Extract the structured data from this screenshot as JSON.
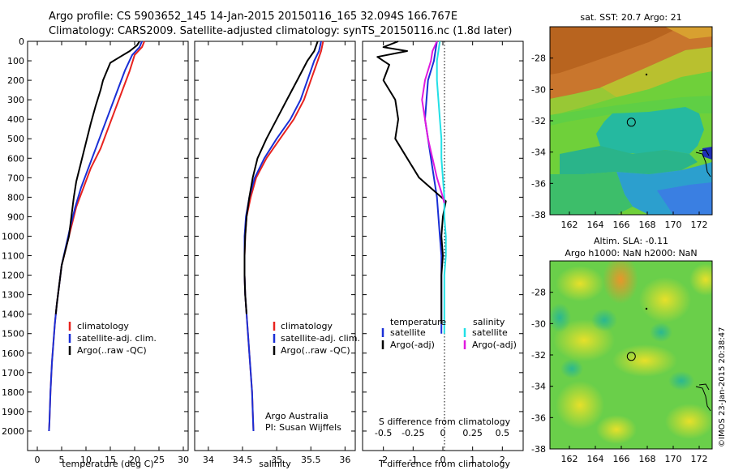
{
  "header": {
    "line1": "Argo profile: CS 5903652_145 14-Jan-2015 20150116_165 32.094S 166.767E",
    "line2": "Climatology: CARS2009. Satellite-adjusted climatology: synTS_20150116.nc (1.8d later)"
  },
  "credits": {
    "institution": "Argo Australia",
    "pi": "PI: Susan Wijffels",
    "imos": "©IMOS 23-Jan-2015 20:38:47"
  },
  "colors": {
    "climatology": "#e8231f",
    "satellite": "#1a2fd6",
    "argo": "#000000",
    "sal_satellite": "#22e0e6",
    "sal_argo": "#e01adf"
  },
  "legend_profiles": [
    "climatology",
    "satellite-adj. clim.",
    "Argo(..raw -QC)"
  ],
  "legend_diff": {
    "temp_head": "temperature",
    "sal_head": "salinity",
    "temp_items": [
      "satellite",
      "Argo(-adj)"
    ],
    "sal_items": [
      "satellite",
      "Argo(-adj)"
    ]
  },
  "chart_data": [
    {
      "type": "line",
      "name": "temperature-profile",
      "xlabel": "temperature (deg C)",
      "xlim": [
        -2,
        31
      ],
      "ylim": [
        2100,
        0
      ],
      "xticks": [
        0,
        5,
        10,
        15,
        20,
        25,
        30
      ],
      "yticks": [
        0,
        100,
        200,
        300,
        400,
        500,
        600,
        700,
        800,
        900,
        1000,
        1100,
        1200,
        1300,
        1400,
        1500,
        1600,
        1700,
        1800,
        1900,
        2000
      ],
      "series": [
        {
          "name": "climatology",
          "color": "#e8231f",
          "points": [
            [
              22.0,
              0
            ],
            [
              21.5,
              30
            ],
            [
              20.0,
              70
            ],
            [
              19.0,
              150
            ],
            [
              17.5,
              250
            ],
            [
              16.0,
              350
            ],
            [
              14.5,
              450
            ],
            [
              13.0,
              550
            ],
            [
              11.0,
              650
            ],
            [
              9.5,
              750
            ],
            [
              8.0,
              850
            ],
            [
              7.0,
              950
            ],
            [
              6.0,
              1050
            ],
            [
              5.0,
              1150
            ],
            [
              4.5,
              1250
            ],
            [
              4.0,
              1350
            ],
            [
              3.6,
              1450
            ],
            [
              3.3,
              1550
            ],
            [
              3.0,
              1650
            ],
            [
              2.7,
              1800
            ],
            [
              2.5,
              1950
            ],
            [
              2.4,
              2000
            ]
          ]
        },
        {
          "name": "satellite-adj. clim.",
          "color": "#1a2fd6",
          "points": [
            [
              21.5,
              0
            ],
            [
              21.0,
              30
            ],
            [
              19.5,
              70
            ],
            [
              18.0,
              150
            ],
            [
              16.5,
              250
            ],
            [
              15.0,
              350
            ],
            [
              13.5,
              450
            ],
            [
              12.0,
              550
            ],
            [
              10.5,
              650
            ],
            [
              9.0,
              750
            ],
            [
              7.8,
              850
            ],
            [
              6.8,
              950
            ],
            [
              5.9,
              1050
            ],
            [
              5.0,
              1150
            ],
            [
              4.5,
              1250
            ],
            [
              4.0,
              1350
            ],
            [
              3.6,
              1450
            ],
            [
              3.3,
              1550
            ],
            [
              3.0,
              1650
            ],
            [
              2.7,
              1800
            ],
            [
              2.5,
              1950
            ],
            [
              2.4,
              2000
            ]
          ]
        },
        {
          "name": "Argo(..raw -QC)",
          "color": "#000000",
          "points": [
            [
              21.0,
              0
            ],
            [
              20.5,
              20
            ],
            [
              19.0,
              50
            ],
            [
              17.0,
              80
            ],
            [
              15.0,
              110
            ],
            [
              13.5,
              200
            ],
            [
              13.0,
              250
            ],
            [
              12.0,
              330
            ],
            [
              11.0,
              420
            ],
            [
              10.0,
              520
            ],
            [
              9.0,
              620
            ],
            [
              8.0,
              720
            ],
            [
              7.5,
              800
            ],
            [
              7.0,
              900
            ],
            [
              6.5,
              1000
            ],
            [
              6.0,
              1050
            ],
            [
              5.0,
              1150
            ],
            [
              4.5,
              1250
            ],
            [
              4.0,
              1350
            ],
            [
              3.8,
              1400
            ]
          ]
        }
      ]
    },
    {
      "type": "line",
      "name": "salinity-profile",
      "xlabel": "salinity",
      "xlim": [
        33.8,
        36.15
      ],
      "ylim": [
        2100,
        0
      ],
      "xticks": [
        34,
        34.5,
        35,
        35.5,
        36
      ],
      "series": [
        {
          "name": "climatology",
          "color": "#e8231f",
          "points": [
            [
              35.68,
              0
            ],
            [
              35.65,
              50
            ],
            [
              35.6,
              100
            ],
            [
              35.5,
              200
            ],
            [
              35.4,
              300
            ],
            [
              35.25,
              400
            ],
            [
              35.05,
              500
            ],
            [
              34.85,
              600
            ],
            [
              34.7,
              700
            ],
            [
              34.62,
              800
            ],
            [
              34.56,
              900
            ],
            [
              34.54,
              1000
            ],
            [
              34.53,
              1100
            ],
            [
              34.53,
              1200
            ],
            [
              34.54,
              1300
            ],
            [
              34.56,
              1400
            ],
            [
              34.58,
              1500
            ],
            [
              34.6,
              1600
            ],
            [
              34.62,
              1700
            ],
            [
              34.64,
              1800
            ],
            [
              34.65,
              1900
            ],
            [
              34.66,
              2000
            ]
          ]
        },
        {
          "name": "satellite-adj. clim.",
          "color": "#1a2fd6",
          "points": [
            [
              35.65,
              0
            ],
            [
              35.62,
              50
            ],
            [
              35.55,
              100
            ],
            [
              35.45,
              200
            ],
            [
              35.35,
              300
            ],
            [
              35.2,
              400
            ],
            [
              35.0,
              500
            ],
            [
              34.82,
              600
            ],
            [
              34.68,
              700
            ],
            [
              34.6,
              800
            ],
            [
              34.55,
              900
            ],
            [
              34.53,
              1000
            ],
            [
              34.53,
              1100
            ],
            [
              34.53,
              1200
            ],
            [
              34.54,
              1300
            ],
            [
              34.56,
              1400
            ],
            [
              34.58,
              1500
            ],
            [
              34.6,
              1600
            ],
            [
              34.62,
              1700
            ],
            [
              34.64,
              1800
            ],
            [
              34.65,
              1900
            ],
            [
              34.66,
              2000
            ]
          ]
        },
        {
          "name": "Argo(..raw -QC)",
          "color": "#000000",
          "points": [
            [
              35.6,
              0
            ],
            [
              35.55,
              50
            ],
            [
              35.45,
              100
            ],
            [
              35.3,
              200
            ],
            [
              35.15,
              300
            ],
            [
              35.0,
              400
            ],
            [
              34.85,
              500
            ],
            [
              34.72,
              600
            ],
            [
              34.65,
              700
            ],
            [
              34.6,
              800
            ],
            [
              34.56,
              900
            ],
            [
              34.54,
              1000
            ],
            [
              34.53,
              1100
            ],
            [
              34.53,
              1200
            ],
            [
              34.54,
              1300
            ],
            [
              34.56,
              1400
            ]
          ]
        }
      ]
    },
    {
      "type": "line",
      "name": "difference-profile",
      "xlabel_top": "S difference from climatology",
      "xlabel_bottom": "T difference from climatology",
      "xlim": [
        -2.7,
        2.7
      ],
      "ylim": [
        2100,
        0
      ],
      "xticks_bottom": [
        -2,
        -1,
        0,
        1,
        2
      ],
      "xticks_top": [
        "-0.5",
        "-0.25",
        "0",
        "0.25",
        "0.5"
      ],
      "xticks_top_pos": [
        -2,
        -1,
        0,
        1,
        2
      ],
      "series": [
        {
          "name": "temperature satellite",
          "color": "#1a2fd6",
          "points": [
            [
              -0.2,
              0
            ],
            [
              -0.25,
              50
            ],
            [
              -0.3,
              100
            ],
            [
              -0.5,
              200
            ],
            [
              -0.55,
              300
            ],
            [
              -0.6,
              400
            ],
            [
              -0.5,
              500
            ],
            [
              -0.4,
              600
            ],
            [
              -0.3,
              700
            ],
            [
              -0.2,
              800
            ],
            [
              -0.15,
              900
            ],
            [
              -0.1,
              1000
            ],
            [
              -0.05,
              1100
            ],
            [
              -0.05,
              1200
            ],
            [
              -0.05,
              1300
            ],
            [
              -0.05,
              1400
            ],
            [
              -0.05,
              1500
            ]
          ]
        },
        {
          "name": "temperature Argo(-adj)",
          "color": "#000000",
          "points": [
            [
              -1.5,
              0
            ],
            [
              -2.0,
              30
            ],
            [
              -1.2,
              50
            ],
            [
              -2.2,
              80
            ],
            [
              -1.8,
              120
            ],
            [
              -2.0,
              200
            ],
            [
              -1.6,
              300
            ],
            [
              -1.5,
              400
            ],
            [
              -1.6,
              500
            ],
            [
              -1.2,
              600
            ],
            [
              -0.8,
              700
            ],
            [
              -0.2,
              780
            ],
            [
              0.1,
              820
            ],
            [
              0.0,
              900
            ],
            [
              -0.05,
              1000
            ],
            [
              0.0,
              1100
            ],
            [
              -0.05,
              1200
            ],
            [
              -0.05,
              1300
            ],
            [
              -0.05,
              1400
            ],
            [
              -0.05,
              1450
            ]
          ]
        },
        {
          "name": "salinity satellite",
          "color": "#22e0e6",
          "points": [
            [
              -0.1,
              0
            ],
            [
              -0.15,
              50
            ],
            [
              -0.2,
              100
            ],
            [
              -0.2,
              200
            ],
            [
              -0.15,
              300
            ],
            [
              -0.1,
              400
            ],
            [
              -0.05,
              500
            ],
            [
              -0.05,
              600
            ],
            [
              0.0,
              700
            ],
            [
              0.05,
              800
            ],
            [
              0.05,
              900
            ],
            [
              0.1,
              1000
            ],
            [
              0.1,
              1100
            ],
            [
              0.05,
              1200
            ],
            [
              0.05,
              1300
            ],
            [
              0.05,
              1400
            ],
            [
              0.05,
              1500
            ]
          ]
        },
        {
          "name": "salinity Argo(-adj)",
          "color": "#e01adf",
          "points": [
            [
              -0.2,
              0
            ],
            [
              -0.35,
              50
            ],
            [
              -0.4,
              100
            ],
            [
              -0.6,
              200
            ],
            [
              -0.7,
              300
            ],
            [
              -0.6,
              400
            ],
            [
              -0.5,
              500
            ],
            [
              -0.35,
              600
            ],
            [
              -0.2,
              700
            ],
            [
              0.0,
              800
            ],
            [
              0.05,
              830
            ]
          ]
        }
      ]
    },
    {
      "type": "heatmap",
      "name": "sst-map",
      "title": "sat. SST: 20.7 Argo: 21",
      "xlim": [
        160.5,
        173
      ],
      "ylim": [
        -38,
        -26
      ],
      "xticks": [
        162,
        164,
        166,
        168,
        170,
        172
      ],
      "yticks": [
        -28,
        -30,
        -32,
        -34,
        -36,
        -38
      ],
      "marker": [
        166.767,
        -32.094
      ]
    },
    {
      "type": "heatmap",
      "name": "sla-map",
      "title": "Altim. SLA: -0.11",
      "subtitle": "Argo h1000: NaN h2000: NaN",
      "xlim": [
        160.5,
        173
      ],
      "ylim": [
        -38,
        -26
      ],
      "xticks": [
        162,
        164,
        166,
        168,
        170,
        172
      ],
      "yticks": [
        -28,
        -30,
        -32,
        -34,
        -36,
        -38
      ],
      "marker": [
        166.767,
        -32.094
      ]
    }
  ]
}
